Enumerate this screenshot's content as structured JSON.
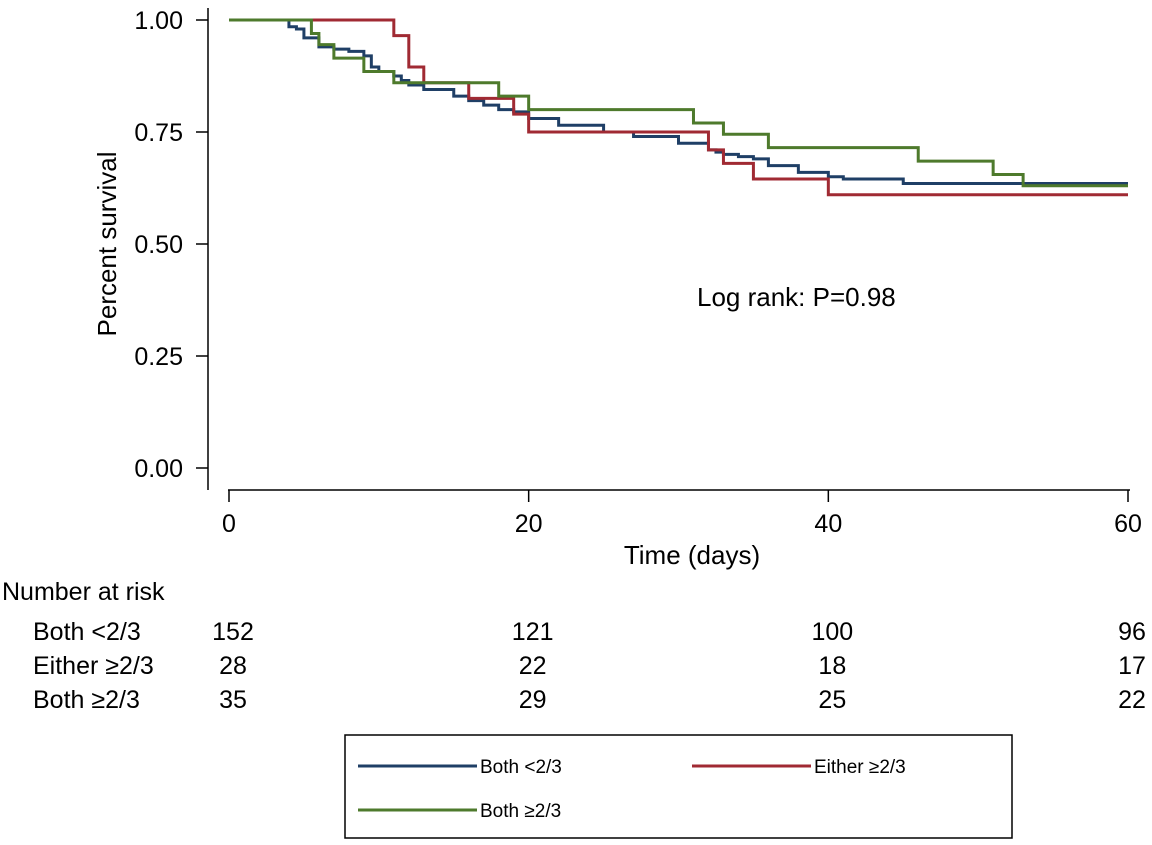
{
  "chart_data": {
    "type": "line",
    "subtype": "kaplan-meier-step",
    "title": "",
    "xlabel": "Time (days)",
    "ylabel": "Percent survival",
    "xlim": [
      0,
      60
    ],
    "ylim": [
      0,
      1
    ],
    "x_ticks": [
      0,
      20,
      40,
      60
    ],
    "x_tick_labels": [
      "0",
      "20",
      "40",
      "60"
    ],
    "y_ticks": [
      0,
      0.25,
      0.5,
      0.75,
      1
    ],
    "y_tick_labels": [
      "0.00",
      "0.25",
      "0.50",
      "0.75",
      "1.00"
    ],
    "grid": false,
    "annotation": "Log rank: P=0.98",
    "legend_position": "bottom",
    "series": [
      {
        "name": "Both <2/3",
        "color": "#1f3f66",
        "points": [
          [
            0,
            1.0
          ],
          [
            4,
            0.985
          ],
          [
            4.5,
            0.98
          ],
          [
            5,
            0.96
          ],
          [
            6,
            0.94
          ],
          [
            7,
            0.935
          ],
          [
            8,
            0.93
          ],
          [
            9,
            0.92
          ],
          [
            9.5,
            0.895
          ],
          [
            10,
            0.885
          ],
          [
            11,
            0.875
          ],
          [
            11.5,
            0.865
          ],
          [
            12,
            0.855
          ],
          [
            13,
            0.845
          ],
          [
            15,
            0.83
          ],
          [
            16,
            0.82
          ],
          [
            17,
            0.81
          ],
          [
            18,
            0.8
          ],
          [
            19,
            0.795
          ],
          [
            20,
            0.78
          ],
          [
            22,
            0.765
          ],
          [
            25,
            0.75
          ],
          [
            27,
            0.74
          ],
          [
            30,
            0.725
          ],
          [
            32,
            0.71
          ],
          [
            32.5,
            0.705
          ],
          [
            33,
            0.7
          ],
          [
            34,
            0.695
          ],
          [
            35,
            0.69
          ],
          [
            36,
            0.675
          ],
          [
            38,
            0.66
          ],
          [
            40,
            0.65
          ],
          [
            41,
            0.645
          ],
          [
            45,
            0.635
          ],
          [
            60,
            0.635
          ]
        ]
      },
      {
        "name": "Either ≥2/3",
        "color": "#a02a33",
        "points": [
          [
            0,
            1.0
          ],
          [
            5,
            1.0
          ],
          [
            11,
            0.965
          ],
          [
            12,
            0.895
          ],
          [
            13,
            0.86
          ],
          [
            16,
            0.825
          ],
          [
            19,
            0.79
          ],
          [
            20,
            0.75
          ],
          [
            32,
            0.71
          ],
          [
            33,
            0.68
          ],
          [
            35,
            0.645
          ],
          [
            40,
            0.61
          ],
          [
            60,
            0.61
          ]
        ]
      },
      {
        "name": "Both ≥2/3",
        "color": "#4e7a2c",
        "points": [
          [
            0,
            1.0
          ],
          [
            5,
            1.0
          ],
          [
            5.5,
            0.97
          ],
          [
            6,
            0.945
          ],
          [
            7,
            0.915
          ],
          [
            9,
            0.885
          ],
          [
            11,
            0.86
          ],
          [
            18,
            0.83
          ],
          [
            20,
            0.8
          ],
          [
            31,
            0.77
          ],
          [
            33,
            0.745
          ],
          [
            36,
            0.715
          ],
          [
            46,
            0.685
          ],
          [
            51,
            0.655
          ],
          [
            53,
            0.63
          ],
          [
            60,
            0.63
          ]
        ]
      }
    ],
    "risk_table": {
      "title": "Number at risk",
      "time_points": [
        0,
        20,
        40,
        60
      ],
      "rows": [
        {
          "name": "Both <2/3",
          "counts": [
            "152",
            "121",
            "100",
            "96"
          ]
        },
        {
          "name": "Either ≥2/3",
          "counts": [
            "28",
            "22",
            "18",
            "17"
          ]
        },
        {
          "name": "Both ≥2/3",
          "counts": [
            "35",
            "29",
            "25",
            "22"
          ]
        }
      ]
    }
  }
}
